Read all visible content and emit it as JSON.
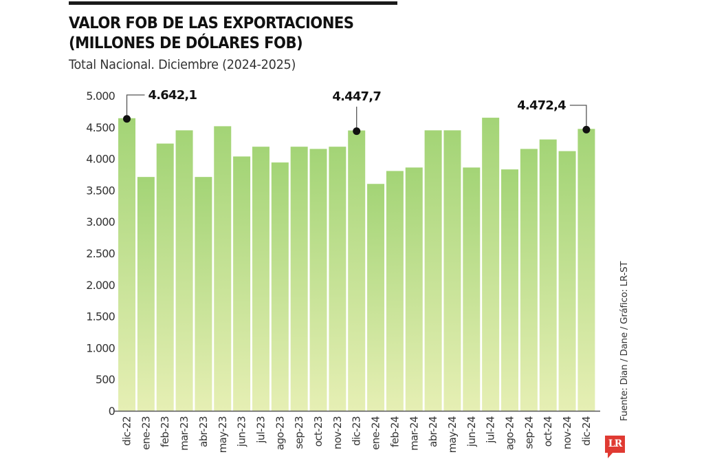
{
  "header": {
    "title_line1": "VALOR FOB DE LAS EXPORTACIONES",
    "title_line2": "(MILLONES DE DÓLARES FOB)",
    "subtitle": "Total Nacional. Diciembre (2024-2025)"
  },
  "source": "Fuente: Dian / Dane / Gráfico: LR-ST",
  "logo": {
    "text": "LR",
    "color": "#e03a32"
  },
  "colors": {
    "bar_top": "#a3d476",
    "bar_bottom": "#e6efb4",
    "axis": "#555555",
    "marker": "#111111"
  },
  "chart_data": {
    "type": "bar",
    "title": "VALOR FOB DE LAS EXPORTACIONES (MILLONES DE DÓLARES FOB)",
    "subtitle": "Total Nacional. Diciembre (2024-2025)",
    "xlabel": "",
    "ylabel": "",
    "ylim": [
      0,
      5000
    ],
    "yticks": [
      0,
      500,
      1000,
      1500,
      2000,
      2500,
      3000,
      3500,
      4000,
      4500,
      5000
    ],
    "ytick_labels": [
      "0",
      "500",
      "1.000",
      "1.500",
      "2.000",
      "2.500",
      "3.000",
      "3.500",
      "4.000",
      "4.500",
      "5.000"
    ],
    "grid": false,
    "categories": [
      "dic-22",
      "ene-23",
      "feb-23",
      "mar-23",
      "abr-23",
      "may-23",
      "jun-23",
      "jul-23",
      "ago-23",
      "sep-23",
      "oct-23",
      "nov-23",
      "dic-23",
      "ene-24",
      "feb-24",
      "mar-24",
      "abr-24",
      "may-24",
      "jun-24",
      "jul-24",
      "ago-24",
      "sep-24",
      "oct-24",
      "nov-24",
      "dic-24"
    ],
    "values": [
      4642.1,
      3710,
      4240,
      4450,
      3710,
      4515,
      4035,
      4190,
      3940,
      4190,
      4155,
      4190,
      4447.7,
      3600,
      3805,
      3860,
      4450,
      4450,
      3860,
      4650,
      3830,
      4155,
      4305,
      4120,
      4472.4
    ],
    "annotations": [
      {
        "category": "dic-22",
        "label": "4.642,1",
        "side": "right"
      },
      {
        "category": "dic-23",
        "label": "4.447,7",
        "side": "center"
      },
      {
        "category": "dic-24",
        "label": "4.472,4",
        "side": "left"
      }
    ]
  }
}
